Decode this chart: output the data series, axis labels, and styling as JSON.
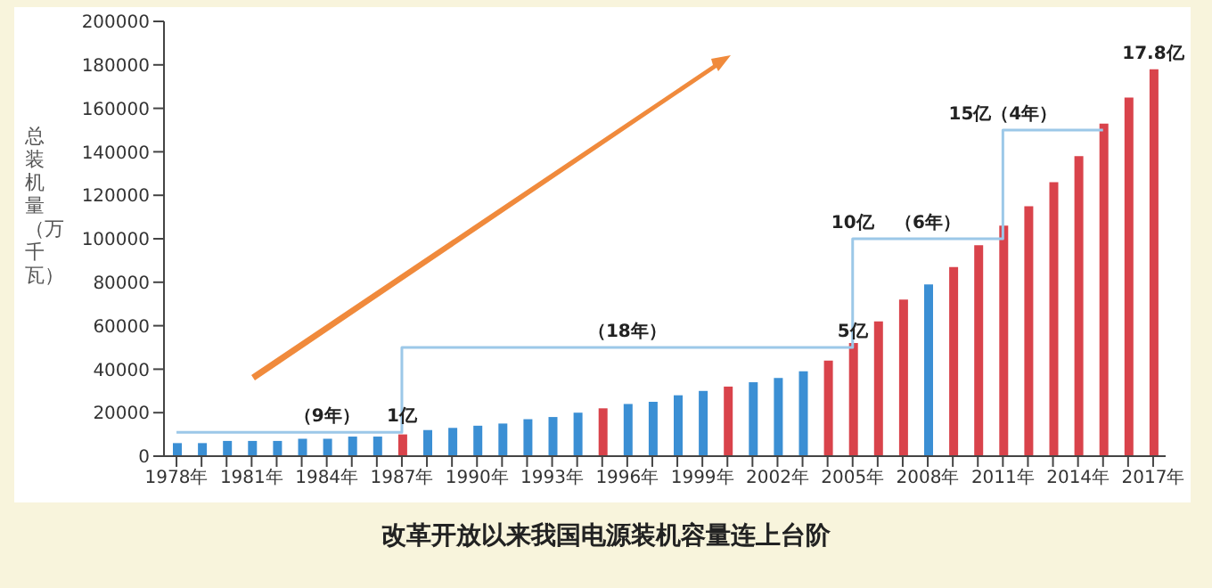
{
  "chart_data": {
    "type": "bar",
    "title": "改革开放以来我国电源装机容量连上台阶",
    "ylabel": "总装机量（万千瓦）",
    "categories": [
      "1978年",
      null,
      null,
      "1981年",
      null,
      null,
      "1984年",
      null,
      null,
      "1987年",
      null,
      null,
      "1990年",
      null,
      null,
      "1993年",
      null,
      null,
      "1996年",
      null,
      null,
      "1999年",
      null,
      null,
      "2002年",
      null,
      null,
      "2005年",
      null,
      null,
      "2008年",
      null,
      null,
      "2011年",
      null,
      null,
      "2014年",
      null,
      null,
      "2017年"
    ],
    "series": [
      {
        "type": "bar",
        "values": [
          6000,
          6000,
          7000,
          7000,
          7000,
          8000,
          8000,
          9000,
          9000,
          10000,
          12000,
          13000,
          14000,
          15000,
          17000,
          18000,
          20000,
          22000,
          24000,
          25000,
          28000,
          30000,
          32000,
          34000,
          36000,
          39000,
          44000,
          52000,
          62000,
          72000,
          79000,
          87000,
          97000,
          106000,
          115000,
          126000,
          138000,
          153000,
          165000,
          178000
        ],
        "colors": [
          "#3b8fd4",
          "#3b8fd4",
          "#3b8fd4",
          "#3b8fd4",
          "#3b8fd4",
          "#3b8fd4",
          "#3b8fd4",
          "#3b8fd4",
          "#3b8fd4",
          "#d9434b",
          "#3b8fd4",
          "#3b8fd4",
          "#3b8fd4",
          "#3b8fd4",
          "#3b8fd4",
          "#3b8fd4",
          "#3b8fd4",
          "#d9434b",
          "#3b8fd4",
          "#3b8fd4",
          "#3b8fd4",
          "#3b8fd4",
          "#d9434b",
          "#3b8fd4",
          "#3b8fd4",
          "#3b8fd4",
          "#d9434b",
          "#d9434b",
          "#d9434b",
          "#d9434b",
          "#3b8fd4",
          "#d9434b",
          "#d9434b",
          "#d9434b",
          "#d9434b",
          "#d9434b",
          "#d9434b",
          "#d9434b",
          "#d9434b",
          "#d9434b"
        ]
      },
      {
        "type": "step",
        "color": "#9cc8e8",
        "values": [
          11000,
          11000,
          11000,
          11000,
          11000,
          11000,
          11000,
          11000,
          11000,
          50000,
          50000,
          50000,
          50000,
          50000,
          50000,
          50000,
          50000,
          50000,
          50000,
          50000,
          50000,
          50000,
          50000,
          50000,
          50000,
          50000,
          50000,
          100000,
          100000,
          100000,
          100000,
          100000,
          100000,
          150000,
          150000,
          150000,
          150000,
          150000,
          null,
          null
        ]
      }
    ],
    "annotations": [
      {
        "text": "（9年）",
        "x": "1984年",
        "y": 11000
      },
      {
        "text": "1亿",
        "x": "1987年",
        "y": 11000
      },
      {
        "text": "（18年）",
        "x": "1996年",
        "y": 50000
      },
      {
        "text": "5亿",
        "x": "2005年",
        "y": 50000
      },
      {
        "text": "10亿",
        "x": "2005年",
        "y": 100000
      },
      {
        "text": "（6年）",
        "x": "2008年",
        "y": 100000
      },
      {
        "text": "15亿（4年）",
        "x": "2011年",
        "y": 150000
      },
      {
        "text": "17.8亿",
        "x": "2017年",
        "y": 178000
      }
    ],
    "ylim": [
      0,
      200000
    ],
    "yticks": [
      0,
      20000,
      40000,
      60000,
      80000,
      100000,
      120000,
      140000,
      160000,
      180000,
      200000
    ],
    "legend": false,
    "grid": false
  }
}
